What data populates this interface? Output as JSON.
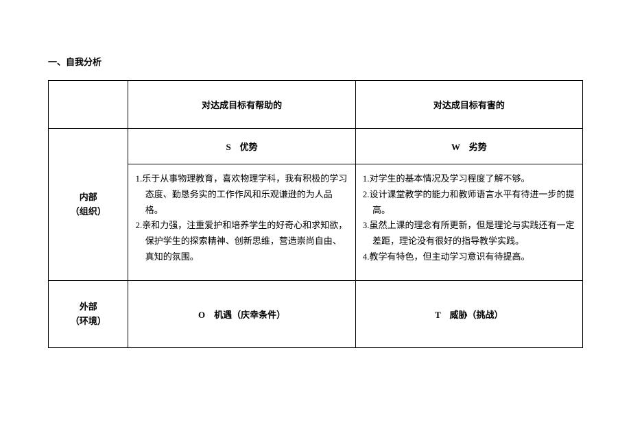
{
  "title": "一、自我分析",
  "table": {
    "col_headers": {
      "helpful": "对达成目标有帮助的",
      "harmful": "对达成目标有害的"
    },
    "row_headers": {
      "internal_line1": "内部",
      "internal_line2": "（组织）",
      "external_line1": "外部",
      "external_line2": "（环境）"
    },
    "swot": {
      "s_label": "S　优势",
      "w_label": "W　劣势",
      "o_label": "O　机遇（庆幸条件）",
      "t_label": "T　威胁（挑战）"
    },
    "strengths": [
      "1.乐于从事物理教育，喜欢物理学科，我有积极的学习态度、勤恳务实的工作作风和乐观谦逊的为人品格。",
      "2.亲和力强，注重爱护和培养学生的好奇心和求知欲，保护学生的探索精神、创新思维，营造崇尚自由、真知的氛围。"
    ],
    "weaknesses": [
      "1.对学生的基本情况及学习程度了解不够。",
      "2.设计课堂教学的能力和教师语言水平有待进一步的提高。",
      "3.虽然上课的理念有所更新，但是理论与实践还有一定差距，理论没有很好的指导教学实践。",
      "4.教学有特色，但主动学习意识有待提高。"
    ]
  }
}
